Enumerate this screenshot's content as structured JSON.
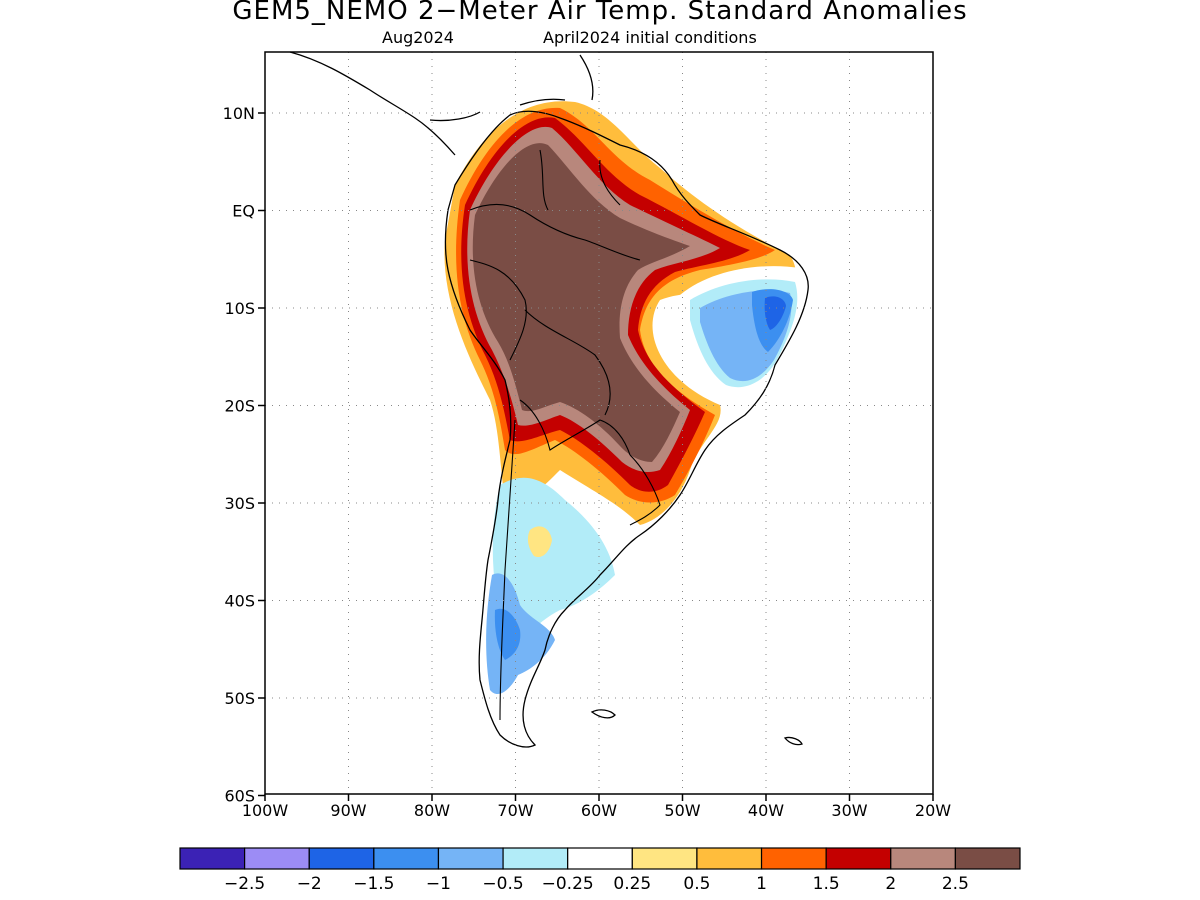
{
  "title": "GEM5_NEMO 2−Meter Air Temp. Standard Anomalies",
  "subtitle_left": "Aug2024",
  "subtitle_right": "April2024 initial conditions",
  "lat_ticks": [
    {
      "value": 10,
      "label": "10N"
    },
    {
      "value": 0,
      "label": "EQ"
    },
    {
      "value": -10,
      "label": "10S"
    },
    {
      "value": -20,
      "label": "20S"
    },
    {
      "value": -30,
      "label": "30S"
    },
    {
      "value": -40,
      "label": "40S"
    },
    {
      "value": -50,
      "label": "50S"
    },
    {
      "value": -60,
      "label": "60S"
    }
  ],
  "lon_ticks": [
    {
      "value": -100,
      "label": "100W"
    },
    {
      "value": -90,
      "label": "90W"
    },
    {
      "value": -80,
      "label": "80W"
    },
    {
      "value": -70,
      "label": "70W"
    },
    {
      "value": -60,
      "label": "60W"
    },
    {
      "value": -50,
      "label": "50W"
    },
    {
      "value": -40,
      "label": "40W"
    },
    {
      "value": -30,
      "label": "30W"
    },
    {
      "value": -20,
      "label": "20W"
    }
  ],
  "colorbar": {
    "colors": [
      "#3b22b5",
      "#9c8cf5",
      "#1e64e6",
      "#3c8ff0",
      "#75b4f6",
      "#b2ecf8",
      "#ffffff",
      "#ffe582",
      "#ffbd3c",
      "#ff6200",
      "#c40000",
      "#b8877c",
      "#7a4d45"
    ],
    "labels": [
      "−2.5",
      "−2",
      "−1.5",
      "−1",
      "−0.5",
      "−0.25",
      "0.25",
      "0.5",
      "1",
      "1.5",
      "2",
      "2.5"
    ]
  }
}
